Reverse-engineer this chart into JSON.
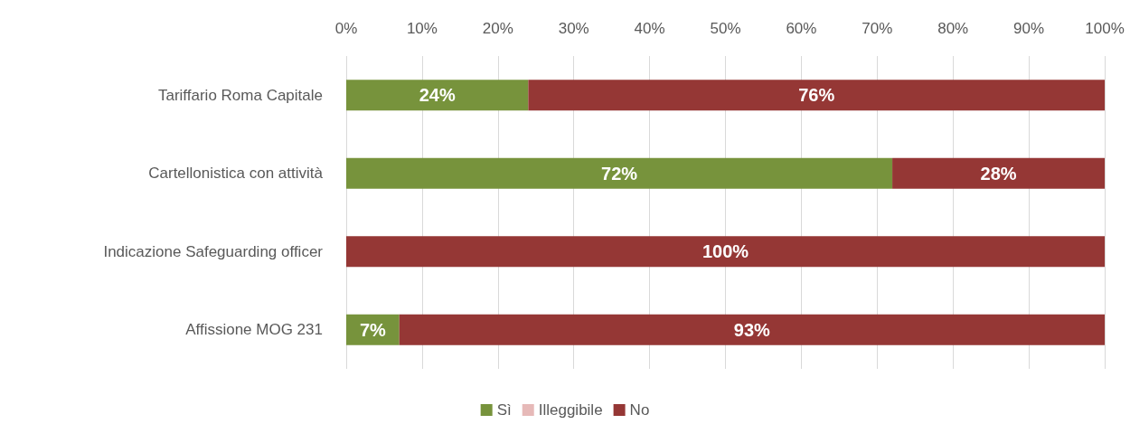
{
  "chart_data": {
    "type": "bar",
    "orientation": "horizontal",
    "stacked": true,
    "categories": [
      "Tariffario Roma Capitale",
      "Cartellonistica con attività",
      "Indicazione Safeguarding officer",
      "Affissione MOG 231"
    ],
    "series": [
      {
        "name": "Sì",
        "color": "#77933c",
        "values": [
          24,
          72,
          0,
          7
        ],
        "value_labels": [
          "24%",
          "72%",
          null,
          "7%"
        ]
      },
      {
        "name": "Illeggibile",
        "color": "#e6b9b8",
        "values": [
          0,
          0,
          0,
          0
        ],
        "value_labels": [
          null,
          null,
          null,
          null
        ]
      },
      {
        "name": "No",
        "color": "#953735",
        "values": [
          76,
          28,
          100,
          93
        ],
        "value_labels": [
          "76%",
          "28%",
          "100%",
          "93%"
        ]
      }
    ],
    "xlim": [
      0,
      100
    ],
    "xticks": [
      {
        "value": 0,
        "label": "0%"
      },
      {
        "value": 10,
        "label": "10%"
      },
      {
        "value": 20,
        "label": "20%"
      },
      {
        "value": 30,
        "label": "30%"
      },
      {
        "value": 40,
        "label": "40%"
      },
      {
        "value": 50,
        "label": "50%"
      },
      {
        "value": 60,
        "label": "60%"
      },
      {
        "value": 70,
        "label": "70%"
      },
      {
        "value": 80,
        "label": "80%"
      },
      {
        "value": 90,
        "label": "90%"
      },
      {
        "value": 100,
        "label": "100%"
      }
    ],
    "grid": "x",
    "legend": "bottom"
  }
}
